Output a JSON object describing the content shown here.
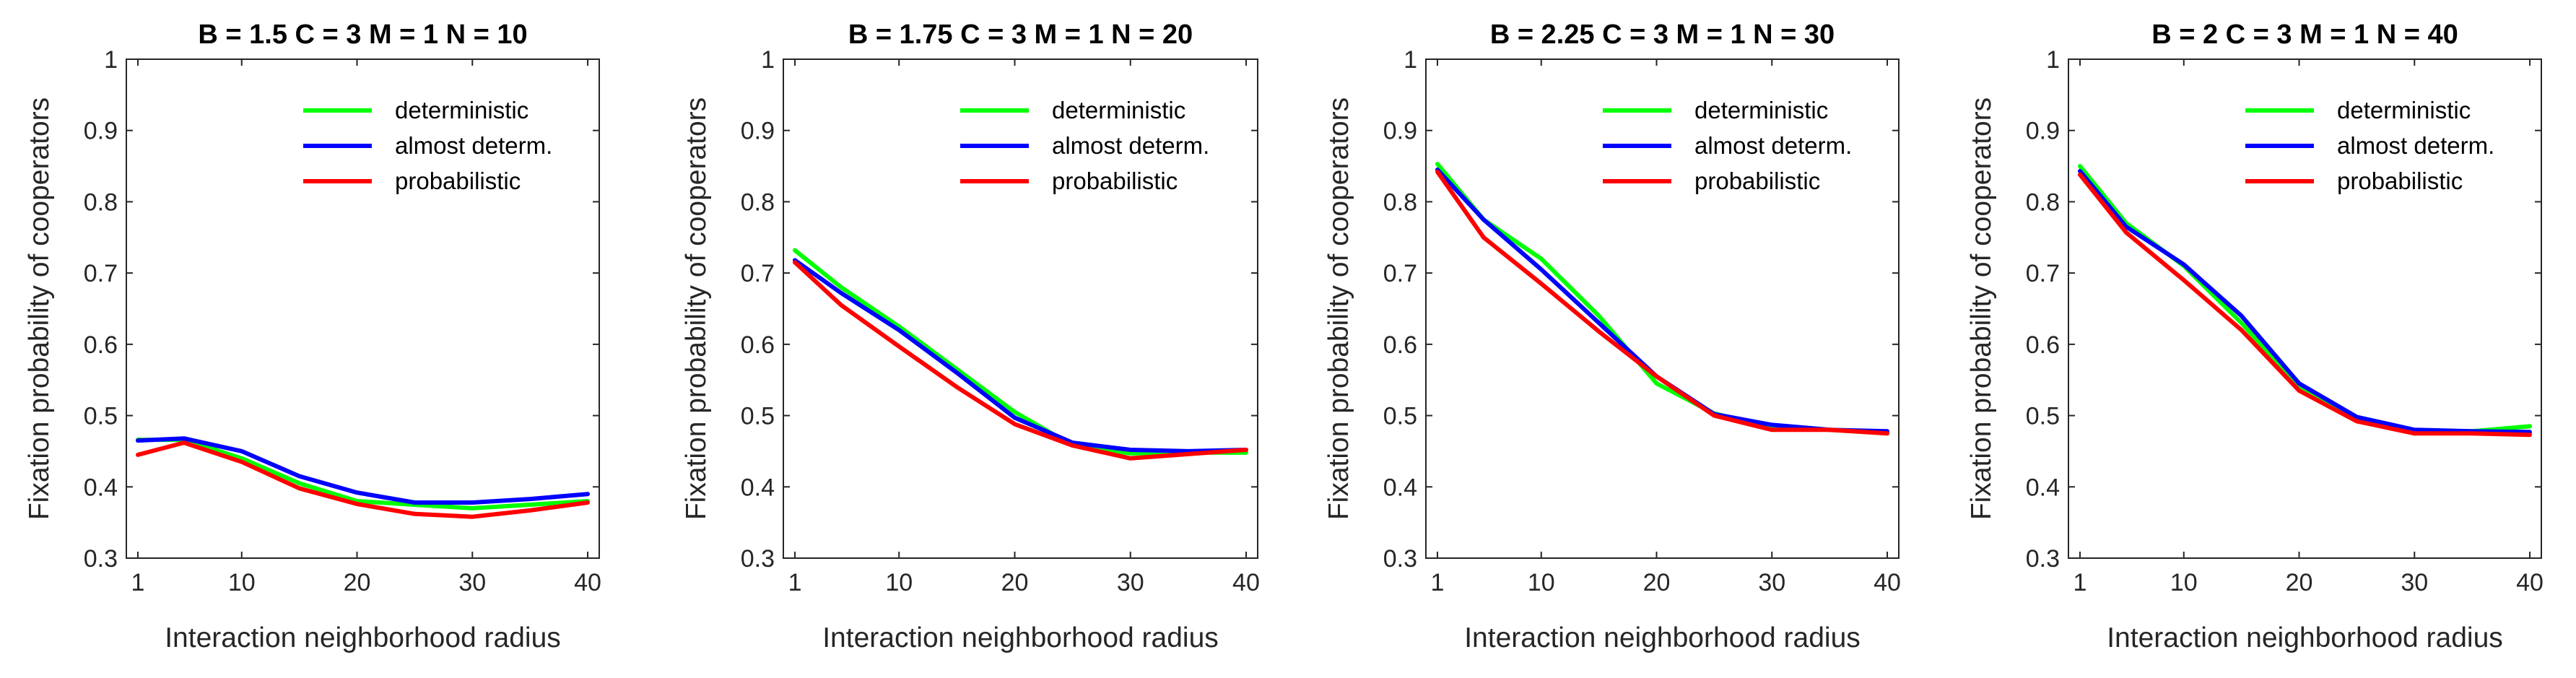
{
  "chart_data": [
    {
      "type": "line",
      "title": "B = 1.5   C = 3   M = 1   N = 10",
      "xlabel": "Interaction neighborhood radius",
      "ylabel": "Fixation probability of cooperators",
      "xlim": [
        0,
        41
      ],
      "ylim": [
        0.3,
        1
      ],
      "xticks": [
        1,
        10,
        20,
        30,
        40
      ],
      "xtick_labels": [
        "1",
        "10",
        "20",
        "30",
        "40"
      ],
      "yticks": [
        0.3,
        0.4,
        0.5,
        0.6,
        0.7,
        0.8,
        0.9,
        1
      ],
      "ytick_labels": [
        "0.3",
        "0.4",
        "0.5",
        "0.6",
        "0.7",
        "0.8",
        "0.9",
        "1"
      ],
      "x": [
        1,
        5,
        10,
        15,
        20,
        25,
        30,
        35,
        40
      ],
      "series": [
        {
          "name": "deterministic",
          "color": "#00ff00",
          "values": [
            0.466,
            0.466,
            0.44,
            0.405,
            0.38,
            0.375,
            0.37,
            0.375,
            0.38
          ]
        },
        {
          "name": "almost determ.",
          "color": "#0000ff",
          "values": [
            0.465,
            0.468,
            0.45,
            0.415,
            0.392,
            0.378,
            0.378,
            0.383,
            0.39
          ]
        },
        {
          "name": "probabilistic",
          "color": "#ff0000",
          "values": [
            0.445,
            0.462,
            0.435,
            0.398,
            0.376,
            0.362,
            0.358,
            0.367,
            0.378
          ]
        }
      ]
    },
    {
      "type": "line",
      "title": "B = 1.75   C = 3   M = 1   N = 20",
      "xlabel": "Interaction neighborhood radius",
      "ylabel": "Fixation probability of cooperators",
      "xlim": [
        0,
        41
      ],
      "ylim": [
        0.3,
        1
      ],
      "xticks": [
        1,
        10,
        20,
        30,
        40
      ],
      "xtick_labels": [
        "1",
        "10",
        "20",
        "30",
        "40"
      ],
      "yticks": [
        0.3,
        0.4,
        0.5,
        0.6,
        0.7,
        0.8,
        0.9,
        1
      ],
      "ytick_labels": [
        "0.3",
        "0.4",
        "0.5",
        "0.6",
        "0.7",
        "0.8",
        "0.9",
        "1"
      ],
      "x": [
        1,
        5,
        10,
        15,
        20,
        25,
        30,
        35,
        40
      ],
      "series": [
        {
          "name": "deterministic",
          "color": "#00ff00",
          "values": [
            0.732,
            0.68,
            0.625,
            0.565,
            0.505,
            0.458,
            0.447,
            0.448,
            0.448
          ]
        },
        {
          "name": "almost determ.",
          "color": "#0000ff",
          "values": [
            0.718,
            0.672,
            0.62,
            0.56,
            0.497,
            0.462,
            0.452,
            0.45,
            0.452
          ]
        },
        {
          "name": "probabilistic",
          "color": "#ff0000",
          "values": [
            0.715,
            0.655,
            0.597,
            0.54,
            0.488,
            0.458,
            0.44,
            0.446,
            0.452
          ]
        }
      ]
    },
    {
      "type": "line",
      "title": "B = 2.25   C = 3   M = 1   N = 30",
      "xlabel": "Interaction neighborhood radius",
      "ylabel": "Fixation probability of cooperators",
      "xlim": [
        0,
        41
      ],
      "ylim": [
        0.3,
        1
      ],
      "xticks": [
        1,
        10,
        20,
        30,
        40
      ],
      "xtick_labels": [
        "1",
        "10",
        "20",
        "30",
        "40"
      ],
      "yticks": [
        0.3,
        0.4,
        0.5,
        0.6,
        0.7,
        0.8,
        0.9,
        1
      ],
      "ytick_labels": [
        "0.3",
        "0.4",
        "0.5",
        "0.6",
        "0.7",
        "0.8",
        "0.9",
        "1"
      ],
      "x": [
        1,
        5,
        10,
        15,
        20,
        25,
        30,
        35,
        40
      ],
      "series": [
        {
          "name": "deterministic",
          "color": "#00ff00",
          "values": [
            0.853,
            0.775,
            0.72,
            0.64,
            0.545,
            0.503,
            0.483,
            0.48,
            0.475
          ]
        },
        {
          "name": "almost determ.",
          "color": "#0000ff",
          "values": [
            0.845,
            0.775,
            0.705,
            0.63,
            0.555,
            0.502,
            0.487,
            0.48,
            0.478
          ]
        },
        {
          "name": "probabilistic",
          "color": "#ff0000",
          "values": [
            0.842,
            0.75,
            0.685,
            0.618,
            0.555,
            0.5,
            0.48,
            0.48,
            0.475
          ]
        }
      ]
    },
    {
      "type": "line",
      "title": "B = 2   C = 3   M = 1   N = 40",
      "xlabel": "Interaction neighborhood radius",
      "ylabel": "Fixation probability of cooperators",
      "xlim": [
        0,
        41
      ],
      "ylim": [
        0.3,
        1
      ],
      "xticks": [
        1,
        10,
        20,
        30,
        40
      ],
      "xtick_labels": [
        "1",
        "10",
        "20",
        "30",
        "40"
      ],
      "yticks": [
        0.3,
        0.4,
        0.5,
        0.6,
        0.7,
        0.8,
        0.9,
        1
      ],
      "ytick_labels": [
        "0.3",
        "0.4",
        "0.5",
        "0.6",
        "0.7",
        "0.8",
        "0.9",
        "1"
      ],
      "x": [
        1,
        5,
        10,
        15,
        20,
        25,
        30,
        35,
        40
      ],
      "series": [
        {
          "name": "deterministic",
          "color": "#00ff00",
          "values": [
            0.85,
            0.77,
            0.71,
            0.63,
            0.54,
            0.495,
            0.475,
            0.478,
            0.485
          ]
        },
        {
          "name": "almost determ.",
          "color": "#0000ff",
          "values": [
            0.843,
            0.765,
            0.712,
            0.64,
            0.545,
            0.498,
            0.48,
            0.478,
            0.477
          ]
        },
        {
          "name": "probabilistic",
          "color": "#ff0000",
          "values": [
            0.838,
            0.757,
            0.69,
            0.62,
            0.535,
            0.492,
            0.475,
            0.475,
            0.473
          ]
        }
      ]
    }
  ]
}
